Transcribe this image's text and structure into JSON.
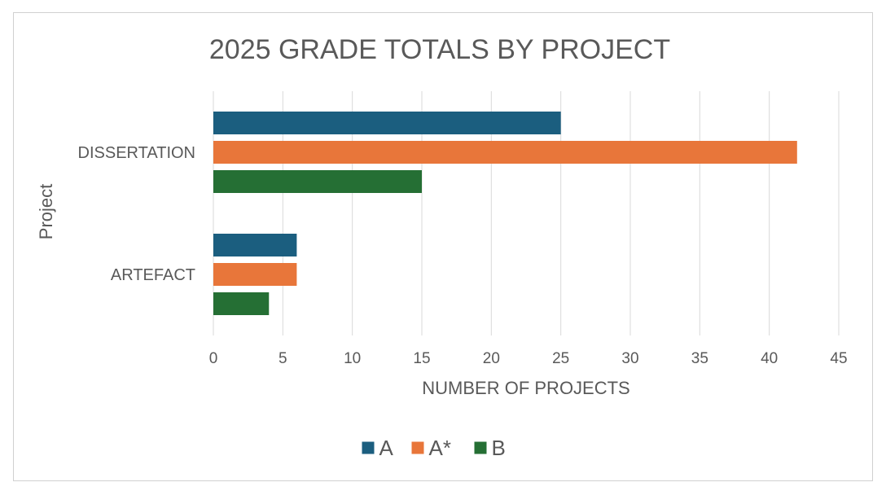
{
  "chart_data": {
    "type": "bar",
    "orientation": "horizontal",
    "title": "2025 GRADE TOTALS BY PROJECT",
    "xlabel": "NUMBER OF PROJECTS",
    "ylabel": "Project",
    "categories": [
      "ARTEFACT",
      "DISSERTATION"
    ],
    "series": [
      {
        "name": "A",
        "values": [
          6,
          25
        ],
        "color": "#1b5e7f"
      },
      {
        "name": "A*",
        "values": [
          6,
          42
        ],
        "color": "#e8763a"
      },
      {
        "name": "B",
        "values": [
          4,
          15
        ],
        "color": "#256f34"
      }
    ],
    "xlim": [
      0,
      45
    ],
    "xticks": [
      0,
      5,
      10,
      15,
      20,
      25,
      30,
      35,
      40,
      45
    ],
    "grid": "vertical",
    "legend": "bottom"
  }
}
